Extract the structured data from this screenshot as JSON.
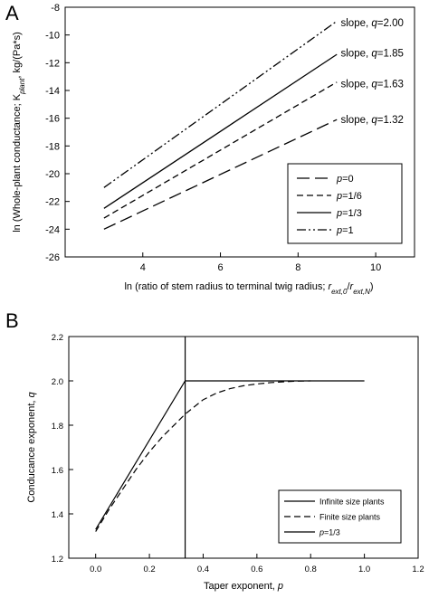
{
  "chart_data": [
    {
      "panel": "A",
      "type": "line",
      "xlabel": "ln (ratio of stem radius to terminal twig radius; ",
      "xlabel_math": "r",
      "xlabel_sub1": "ext,0",
      "xlabel_mid": "/",
      "xlabel_math2": "r",
      "xlabel_sub2": "ext,N",
      "xlabel_end": ")",
      "ylabel_start": "ln (Whole-plant conductance; K",
      "ylabel_sub": "plant",
      "ylabel_end": ", kg/(Pa*s)",
      "xlim": [
        2,
        11
      ],
      "ylim": [
        -26,
        -8
      ],
      "xticks": [
        4,
        6,
        8,
        10
      ],
      "yticks": [
        -26,
        -24,
        -22,
        -20,
        -18,
        -16,
        -14,
        -12,
        -10,
        -8
      ],
      "series": [
        {
          "name": "p=0",
          "p_label": "p",
          "p_value": "=0",
          "dash": "long",
          "x": [
            3,
            9
          ],
          "y": [
            -24.0,
            -16.1
          ]
        },
        {
          "name": "p=1/6",
          "p_label": "p",
          "p_value": "=1/6",
          "dash": "short",
          "x": [
            3,
            9
          ],
          "y": [
            -23.2,
            -13.4
          ]
        },
        {
          "name": "p=1/3",
          "p_label": "p",
          "p_value": "=1/3",
          "dash": "solid",
          "x": [
            3,
            9
          ],
          "y": [
            -22.5,
            -11.4
          ]
        },
        {
          "name": "p=1",
          "p_label": "p",
          "p_value": "=1",
          "dash": "dashdotdot",
          "x": [
            3,
            9
          ],
          "y": [
            -21.0,
            -9.0
          ]
        }
      ],
      "annotations": [
        {
          "text_pre": "slope, ",
          "var": "q",
          "text_post": "=2.00",
          "x": 9.1,
          "y": -9.1
        },
        {
          "text_pre": "slope, ",
          "var": "q",
          "text_post": "=1.85",
          "x": 9.1,
          "y": -11.3
        },
        {
          "text_pre": "slope, ",
          "var": "q",
          "text_post": "=1.63",
          "x": 9.1,
          "y": -13.5
        },
        {
          "text_pre": "slope, ",
          "var": "q",
          "text_post": "=1.32",
          "x": 9.1,
          "y": -16.1
        }
      ],
      "legend": "lower-right"
    },
    {
      "panel": "B",
      "type": "line",
      "xlabel": "Taper exponent, ",
      "xlabel_var": "p",
      "ylabel": "Conducance exponent, ",
      "ylabel_var": "q",
      "xlim": [
        -0.1,
        1.2
      ],
      "ylim": [
        1.2,
        2.2
      ],
      "xticks": [
        "0.0",
        "0.2",
        "0.4",
        "0.6",
        "0.8",
        "1.0",
        "1.2"
      ],
      "xtick_values": [
        0.0,
        0.2,
        0.4,
        0.6,
        0.8,
        1.0,
        1.2
      ],
      "yticks": [
        "1.2",
        "1.4",
        "1.6",
        "1.8",
        "2.0",
        "2.2"
      ],
      "ytick_values": [
        1.2,
        1.4,
        1.6,
        1.8,
        2.0,
        2.2
      ],
      "series": [
        {
          "name": "Infinite size plants",
          "dash": "solid",
          "x": [
            0.0,
            0.333,
            1.0
          ],
          "y": [
            1.33,
            2.0,
            2.0
          ]
        },
        {
          "name": "Finite size plants",
          "dash": "dashed",
          "x": [
            0.0,
            0.05,
            0.1,
            0.15,
            0.2,
            0.25,
            0.3,
            0.333,
            0.4,
            0.45,
            0.5,
            0.55,
            0.6,
            0.65,
            0.7,
            0.75,
            0.8
          ],
          "y": [
            1.32,
            1.42,
            1.51,
            1.6,
            1.68,
            1.75,
            1.81,
            1.85,
            1.915,
            1.945,
            1.965,
            1.978,
            1.986,
            1.992,
            1.996,
            1.999,
            2.0
          ]
        },
        {
          "name": "p=1/3",
          "p_label": "p",
          "p_value": "=1/3",
          "dash": "solid",
          "x": [
            0.333,
            0.333
          ],
          "y": [
            1.2,
            2.2
          ]
        }
      ],
      "legend": "lower-right"
    }
  ]
}
